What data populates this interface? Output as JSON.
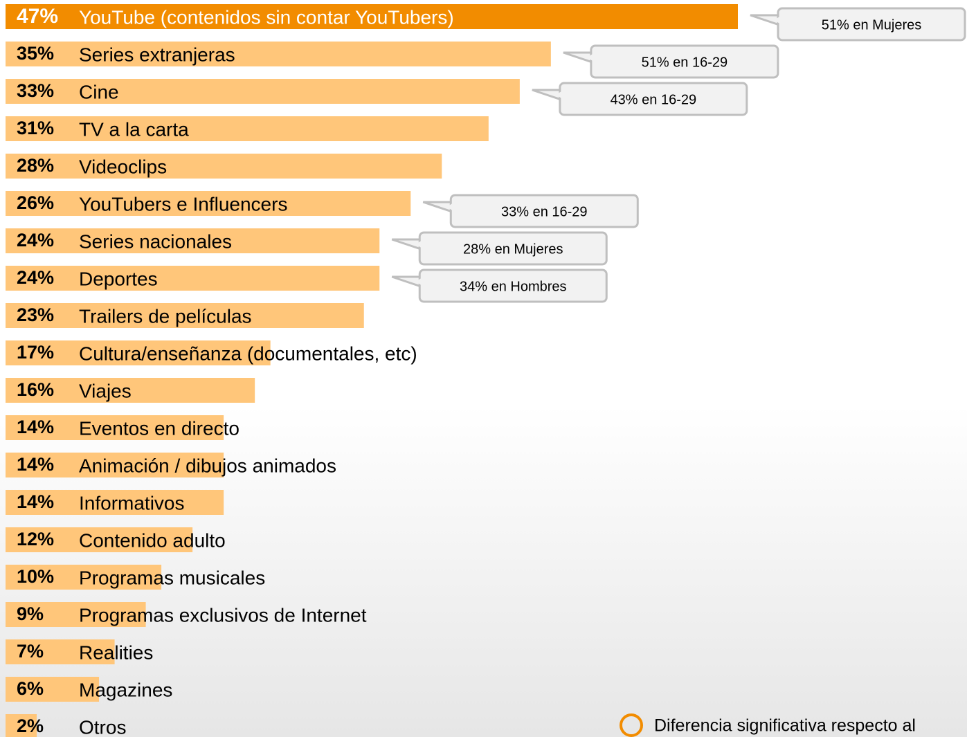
{
  "chart_data": {
    "type": "hbar",
    "categories": [
      "YouTube (contenidos sin contar YouTubers)",
      "Series extranjeras",
      "Cine",
      "TV a la carta",
      "Videoclips",
      "YouTubers e Influencers",
      "Series nacionales",
      "Deportes",
      "Trailers de películas",
      "Cultura/enseñanza (documentales, etc)",
      "Viajes",
      "Eventos en directo",
      "Animación / dibujos animados",
      "Informativos",
      "Contenido adulto",
      "Programas musicales",
      "Programas exclusivos de Internet",
      "Realities",
      "Magazines",
      "Otros"
    ],
    "values": [
      47,
      35,
      33,
      31,
      28,
      26,
      24,
      24,
      23,
      17,
      16,
      14,
      14,
      14,
      12,
      10,
      9,
      7,
      6,
      2
    ],
    "value_labels": [
      "47%",
      "35%",
      "33%",
      "31%",
      "28%",
      "26%",
      "24%",
      "24%",
      "23%",
      "17%",
      "16%",
      "14%",
      "14%",
      "14%",
      "12%",
      "10%",
      "9%",
      "7%",
      "6%",
      "2%"
    ],
    "colors": [
      "#f28c00",
      "#ffc67a",
      "#ffc67a",
      "#ffc67a",
      "#ffc67a",
      "#ffc67a",
      "#ffc67a",
      "#ffc67a",
      "#ffc67a",
      "#ffc67a",
      "#ffc67a",
      "#ffc67a",
      "#ffc67a",
      "#ffc67a",
      "#ffc67a",
      "#ffc67a",
      "#ffc67a",
      "#ffc67a",
      "#ffc67a",
      "#ffc67a"
    ],
    "callouts": [
      "51% en Mujeres",
      "51% en 16-29",
      "43% en 16-29",
      null,
      null,
      "33% en 16-29",
      "28% en Mujeres",
      "34% en Hombres",
      null,
      null,
      null,
      null,
      null,
      null,
      null,
      null,
      null,
      null,
      null,
      null
    ],
    "legend_note": "Diferencia significativa respecto al",
    "legend_color": "#f28c00"
  }
}
